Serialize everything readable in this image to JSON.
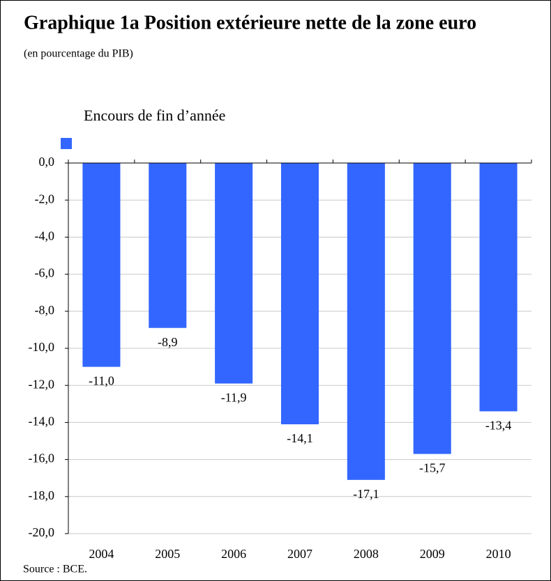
{
  "chart_data": {
    "type": "bar",
    "title": "Graphique 1a Position extérieure nette de la zone euro",
    "subtitle": "(en pourcentage du PIB)",
    "source": "Source : BCE.",
    "categories": [
      "2004",
      "2005",
      "2006",
      "2007",
      "2008",
      "2009",
      "2010"
    ],
    "series": [
      {
        "name": "Encours de fin d’année",
        "color": "#3366ff",
        "values": [
          -11.0,
          -8.9,
          -11.9,
          -14.1,
          -17.1,
          -15.7,
          -13.4
        ],
        "value_labels": [
          "-11,0",
          "-8,9",
          "-11,9",
          "-14,1",
          "-17,1",
          "-15,7",
          "-13,4"
        ]
      }
    ],
    "ylim": [
      -20,
      0
    ],
    "yticks": [
      {
        "value": 0,
        "label": "0,0"
      },
      {
        "value": -2,
        "label": "-2,0"
      },
      {
        "value": -4,
        "label": "-4,0"
      },
      {
        "value": -6,
        "label": "-6,0"
      },
      {
        "value": -8,
        "label": "-8,0"
      },
      {
        "value": -10,
        "label": "-10,0"
      },
      {
        "value": -12,
        "label": "-12,0"
      },
      {
        "value": -14,
        "label": "-14,0"
      },
      {
        "value": -16,
        "label": "-16,0"
      },
      {
        "value": -18,
        "label": "-18,0"
      },
      {
        "value": -20,
        "label": "-20,0"
      }
    ],
    "grid": true
  }
}
